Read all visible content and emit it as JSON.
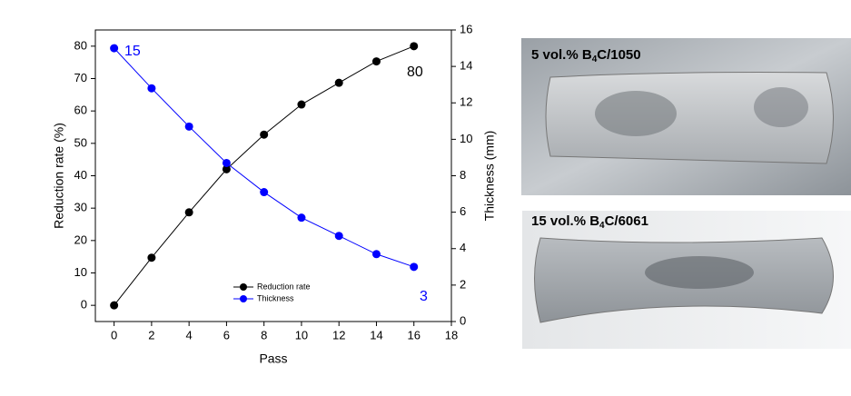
{
  "chart_data": {
    "type": "line",
    "x": [
      0,
      2,
      4,
      6,
      8,
      10,
      12,
      14,
      16
    ],
    "series": [
      {
        "name": "Reduction rate",
        "color": "#000000",
        "values": [
          0,
          14.7,
          28.7,
          42,
          52.7,
          62,
          68.7,
          75.3,
          80
        ]
      },
      {
        "name": "Thickness",
        "color": "#0000ff",
        "axis": "y2",
        "values": [
          15,
          12.8,
          10.7,
          8.7,
          7.1,
          5.7,
          4.7,
          3.7,
          3.0
        ]
      }
    ],
    "xlabel": "Pass",
    "ylabel": "Reduction rate (%)",
    "y2label": "Thickness (mm)",
    "xlim": [
      -1,
      18
    ],
    "xticks": [
      0,
      2,
      4,
      6,
      8,
      10,
      12,
      14,
      16,
      18
    ],
    "ylim": [
      -5,
      85
    ],
    "yticks": [
      0,
      10,
      20,
      30,
      40,
      50,
      60,
      70,
      80
    ],
    "y2lim": [
      0,
      16
    ],
    "y2ticks": [
      0,
      2,
      4,
      6,
      8,
      10,
      12,
      14,
      16
    ],
    "legend": "lower center",
    "annotations": [
      {
        "text": "15",
        "color": "#0000ff"
      },
      {
        "text": "80",
        "color": "#000000"
      },
      {
        "text": "3",
        "color": "#0000ff"
      }
    ]
  },
  "photos": [
    {
      "label": {
        "prefix": "5 vol.% B",
        "sub": "4",
        "suffix": "C/1050"
      }
    },
    {
      "label": {
        "prefix": "15 vol.% B",
        "sub": "4",
        "suffix": "C/6061"
      }
    }
  ]
}
